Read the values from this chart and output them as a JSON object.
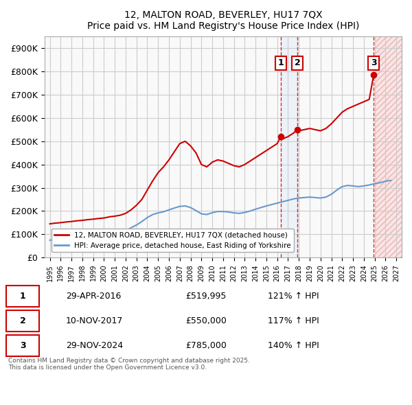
{
  "title": "12, MALTON ROAD, BEVERLEY, HU17 7QX",
  "subtitle": "Price paid vs. HM Land Registry's House Price Index (HPI)",
  "ylabel": "",
  "background_color": "#ffffff",
  "grid_color": "#cccccc",
  "plot_bg_color": "#f9f9f9",
  "hpi_line_color": "#6699cc",
  "price_line_color": "#cc0000",
  "future_hatch_color": "#ffcccc",
  "transactions": [
    {
      "label": "1",
      "date": 2016.33,
      "price": 519995,
      "pct": "121% ↑ HPI"
    },
    {
      "label": "2",
      "date": 2017.86,
      "price": 550000,
      "pct": "117% ↑ HPI"
    },
    {
      "label": "3",
      "date": 2024.91,
      "price": 785000,
      "pct": "140% ↑ HPI"
    }
  ],
  "transaction_dates_display": [
    "29-APR-2016",
    "10-NOV-2017",
    "29-NOV-2024"
  ],
  "transaction_prices_display": [
    "£519,995",
    "£550,000",
    "£785,000"
  ],
  "transaction_pcts_display": [
    "121% ↑ HPI",
    "117% ↑ HPI",
    "140% ↑ HPI"
  ],
  "legend_entries": [
    "12, MALTON ROAD, BEVERLEY, HU17 7QX (detached house)",
    "HPI: Average price, detached house, East Riding of Yorkshire"
  ],
  "footnote": "Contains HM Land Registry data © Crown copyright and database right 2025.\nThis data is licensed under the Open Government Licence v3.0.",
  "ylim": [
    0,
    950000
  ],
  "ytick_vals": [
    0,
    100000,
    200000,
    300000,
    400000,
    500000,
    600000,
    700000,
    800000,
    900000
  ],
  "ytick_labels": [
    "£0",
    "£100K",
    "£200K",
    "£300K",
    "£400K",
    "£500K",
    "£600K",
    "£700K",
    "£800K",
    "£900K"
  ],
  "xlim_start": 1994.5,
  "xlim_end": 2027.5,
  "xtick_vals": [
    1995,
    1996,
    1997,
    1998,
    1999,
    2000,
    2001,
    2002,
    2003,
    2004,
    2005,
    2006,
    2007,
    2008,
    2009,
    2010,
    2011,
    2012,
    2013,
    2014,
    2015,
    2016,
    2017,
    2018,
    2019,
    2020,
    2021,
    2022,
    2023,
    2024,
    2025,
    2026,
    2027
  ],
  "price_data": {
    "x": [
      1995.0,
      1995.5,
      1996.0,
      1996.5,
      1997.0,
      1997.5,
      1998.0,
      1998.5,
      1999.0,
      1999.5,
      2000.0,
      2000.5,
      2001.0,
      2001.5,
      2002.0,
      2002.5,
      2003.0,
      2003.5,
      2004.0,
      2004.5,
      2005.0,
      2005.5,
      2006.0,
      2006.5,
      2007.0,
      2007.5,
      2008.0,
      2008.5,
      2009.0,
      2009.5,
      2010.0,
      2010.5,
      2011.0,
      2011.5,
      2012.0,
      2012.5,
      2013.0,
      2013.5,
      2014.0,
      2014.5,
      2015.0,
      2015.5,
      2016.0,
      2016.33,
      2016.5,
      2017.0,
      2017.5,
      2017.86,
      2018.0,
      2018.5,
      2019.0,
      2019.5,
      2020.0,
      2020.5,
      2021.0,
      2021.5,
      2022.0,
      2022.5,
      2023.0,
      2023.5,
      2024.0,
      2024.5,
      2024.91
    ],
    "y": [
      145000,
      148000,
      150000,
      153000,
      155000,
      158000,
      160000,
      163000,
      165000,
      168000,
      170000,
      175000,
      178000,
      182000,
      190000,
      205000,
      225000,
      250000,
      290000,
      330000,
      365000,
      390000,
      420000,
      455000,
      490000,
      500000,
      480000,
      450000,
      400000,
      390000,
      410000,
      420000,
      415000,
      405000,
      395000,
      390000,
      400000,
      415000,
      430000,
      445000,
      460000,
      475000,
      490000,
      519995,
      510000,
      520000,
      535000,
      550000,
      545000,
      550000,
      555000,
      550000,
      545000,
      555000,
      575000,
      600000,
      625000,
      640000,
      650000,
      660000,
      670000,
      680000,
      785000
    ]
  },
  "hpi_data": {
    "x": [
      1995.0,
      1995.5,
      1996.0,
      1996.5,
      1997.0,
      1997.5,
      1998.0,
      1998.5,
      1999.0,
      1999.5,
      2000.0,
      2000.5,
      2001.0,
      2001.5,
      2002.0,
      2002.5,
      2003.0,
      2003.5,
      2004.0,
      2004.5,
      2005.0,
      2005.5,
      2006.0,
      2006.5,
      2007.0,
      2007.5,
      2008.0,
      2008.5,
      2009.0,
      2009.5,
      2010.0,
      2010.5,
      2011.0,
      2011.5,
      2012.0,
      2012.5,
      2013.0,
      2013.5,
      2014.0,
      2014.5,
      2015.0,
      2015.5,
      2016.0,
      2016.5,
      2017.0,
      2017.5,
      2018.0,
      2018.5,
      2019.0,
      2019.5,
      2020.0,
      2020.5,
      2021.0,
      2021.5,
      2022.0,
      2022.5,
      2023.0,
      2023.5,
      2024.0,
      2024.5,
      2025.0,
      2025.5,
      2026.0,
      2026.5
    ],
    "y": [
      75000,
      76000,
      77000,
      78000,
      80000,
      82000,
      84000,
      87000,
      90000,
      93000,
      96000,
      100000,
      103000,
      107000,
      115000,
      128000,
      140000,
      155000,
      172000,
      185000,
      192000,
      197000,
      205000,
      213000,
      220000,
      222000,
      215000,
      202000,
      188000,
      185000,
      193000,
      198000,
      198000,
      196000,
      192000,
      190000,
      194000,
      200000,
      208000,
      215000,
      222000,
      228000,
      234000,
      240000,
      246000,
      252000,
      256000,
      258000,
      260000,
      258000,
      256000,
      260000,
      272000,
      290000,
      305000,
      310000,
      308000,
      305000,
      308000,
      312000,
      318000,
      322000,
      328000,
      332000
    ]
  }
}
